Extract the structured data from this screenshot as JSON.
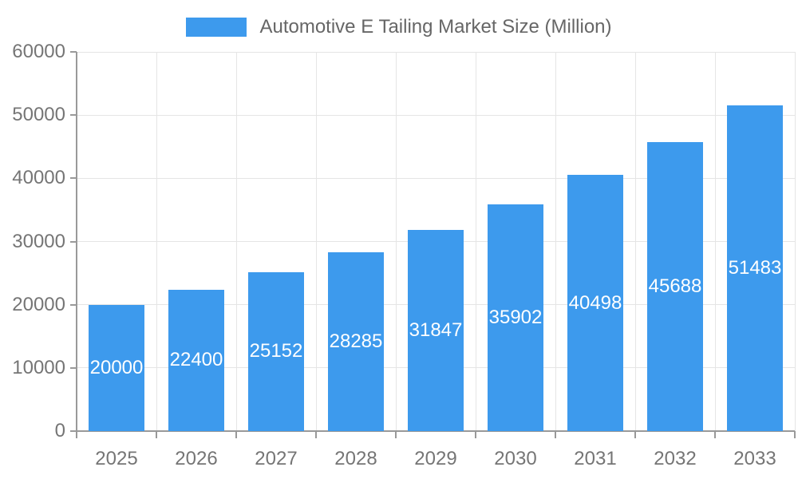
{
  "legend": {
    "label": "Automotive E Tailing Market Size (Million)"
  },
  "chart_data": {
    "type": "bar",
    "title": "Automotive E Tailing Market Size (Million)",
    "categories": [
      "2025",
      "2026",
      "2027",
      "2028",
      "2029",
      "2030",
      "2031",
      "2032",
      "2033"
    ],
    "values": [
      20000,
      22400,
      25152,
      28285,
      31847,
      35902,
      40498,
      45688,
      51483
    ],
    "series": [
      {
        "name": "Automotive E Tailing Market Size (Million)",
        "values": [
          20000,
          22400,
          25152,
          28285,
          31847,
          35902,
          40498,
          45688,
          51483
        ]
      }
    ],
    "xlabel": "",
    "ylabel": "",
    "ylim": [
      0,
      60000
    ],
    "ytick_interval": 10000,
    "ytick_labels": [
      "0",
      "10000",
      "20000",
      "30000",
      "40000",
      "50000",
      "60000"
    ],
    "grid": true,
    "legend_position": "top",
    "value_label_position": "inside-center",
    "colors": {
      "bar": "#3d9aed",
      "value_label": "#ffffff",
      "axis_line": "#999999",
      "gridline": "#e5e5e5",
      "tick_label": "#757575",
      "legend_text": "#666666",
      "background": "#ffffff"
    }
  }
}
